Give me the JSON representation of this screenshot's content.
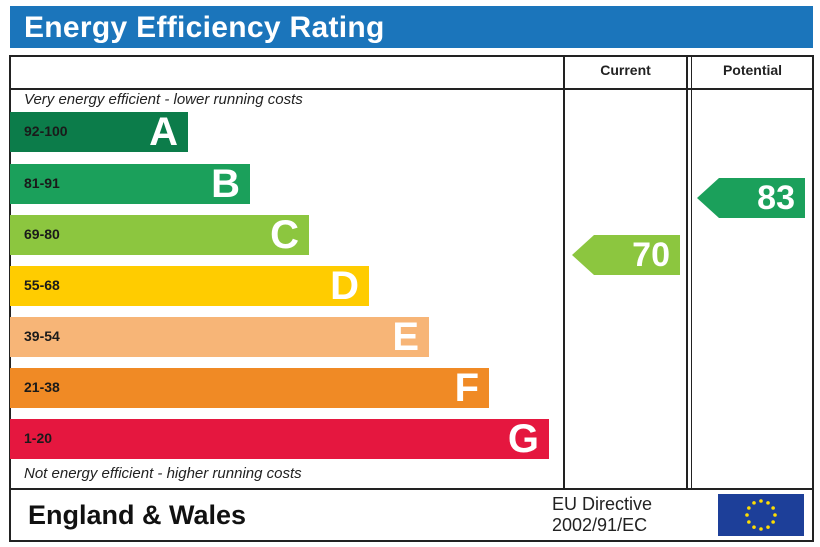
{
  "title": "Energy Efficiency Rating",
  "columns": {
    "current": "Current",
    "potential": "Potential"
  },
  "captions": {
    "top": "Very energy efficient - lower running costs",
    "bottom": "Not energy efficient - higher running costs"
  },
  "footer": {
    "region": "England & Wales",
    "directive_line1": "EU Directive",
    "directive_line2": "2002/91/EC",
    "flag_icon": "eu-flag-icon"
  },
  "chart_data": {
    "type": "bar",
    "bands": [
      {
        "range": "92-100",
        "letter": "A",
        "color": "#0c7c4a"
      },
      {
        "range": "81-91",
        "letter": "B",
        "color": "#1ba05b"
      },
      {
        "range": "69-80",
        "letter": "C",
        "color": "#8cc63f"
      },
      {
        "range": "55-68",
        "letter": "D",
        "color": "#ffcc00"
      },
      {
        "range": "39-54",
        "letter": "E",
        "color": "#f7b577"
      },
      {
        "range": "21-38",
        "letter": "F",
        "color": "#f08a25"
      },
      {
        "range": "1-20",
        "letter": "G",
        "color": "#e5173f"
      }
    ],
    "current": {
      "value": 70,
      "band": "C",
      "color": "#8cc63f"
    },
    "potential": {
      "value": 83,
      "band": "B",
      "color": "#1ba05b"
    }
  }
}
